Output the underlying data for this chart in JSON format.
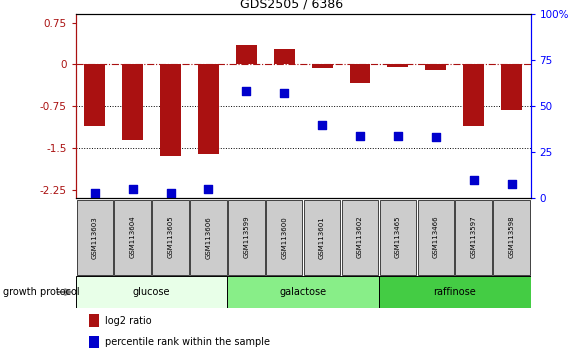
{
  "title": "GDS2505 / 6386",
  "samples": [
    "GSM113603",
    "GSM113604",
    "GSM113605",
    "GSM113606",
    "GSM113599",
    "GSM113600",
    "GSM113601",
    "GSM113602",
    "GSM113465",
    "GSM113466",
    "GSM113597",
    "GSM113598"
  ],
  "log2_ratio": [
    -1.1,
    -1.35,
    -1.65,
    -1.6,
    0.35,
    0.28,
    -0.07,
    -0.33,
    -0.05,
    -0.1,
    -1.1,
    -0.82
  ],
  "percentile_rank": [
    3,
    5,
    3,
    5,
    58,
    57,
    40,
    34,
    34,
    33,
    10,
    8
  ],
  "groups": [
    {
      "label": "glucose",
      "start": 0,
      "end": 4,
      "color": "#e8ffe8"
    },
    {
      "label": "galactose",
      "start": 4,
      "end": 8,
      "color": "#88ee88"
    },
    {
      "label": "raffinose",
      "start": 8,
      "end": 12,
      "color": "#44cc44"
    }
  ],
  "ylim_left": [
    -2.4,
    0.9
  ],
  "ylim_right": [
    0,
    100
  ],
  "yticks_left": [
    0.75,
    0,
    -0.75,
    -1.5,
    -2.25
  ],
  "yticks_right": [
    100,
    75,
    50,
    25,
    0
  ],
  "bar_color": "#aa1111",
  "dot_color": "#0000cc",
  "hline_y": 0,
  "dotted_lines": [
    -0.75,
    -1.5
  ],
  "bar_width": 0.55,
  "dot_size": 30,
  "growth_protocol_label": "growth protocol",
  "legend_bar_label": "log2 ratio",
  "legend_dot_label": "percentile rank within the sample"
}
